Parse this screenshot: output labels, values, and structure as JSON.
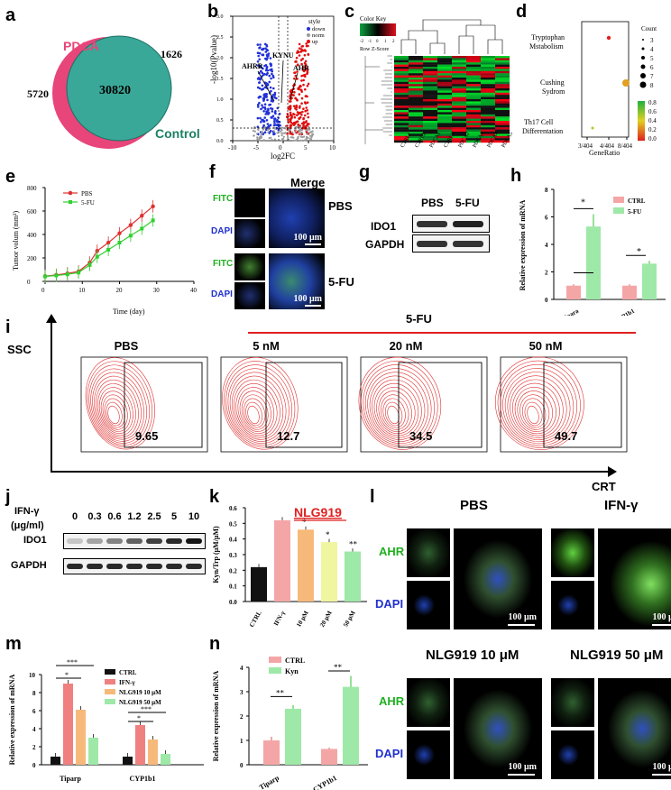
{
  "panel_labels": {
    "a": "a",
    "b": "b",
    "c": "c",
    "d": "d",
    "e": "e",
    "f": "f",
    "g": "g",
    "h": "h",
    "i": "i",
    "j": "j",
    "k": "k",
    "l": "l",
    "m": "m",
    "n": "n"
  },
  "panel_a": {
    "label_pdca": "PDCA",
    "label_control": "Control",
    "only_pdca": "5720",
    "overlap": "30820",
    "only_control": "1626",
    "color_pdca": "#e8457a",
    "color_control": "#3aa898"
  },
  "panel_b": {
    "ylabel": "-log10(Pvalue)",
    "xlabel": "log2FC",
    "legend_title": "style",
    "legend": [
      "down",
      "norm",
      "up"
    ],
    "genes": [
      "AHRR",
      "KYNU",
      "AHR"
    ],
    "xticks": [
      "-10",
      "-5",
      "0",
      "5",
      "10"
    ],
    "yticks": [
      "0.0",
      "0.5",
      "1.0",
      "1.5",
      "2.0",
      "2.5",
      "3.0"
    ]
  },
  "panel_c": {
    "key_title": "Color Key",
    "key_sub": "Row Z-Score",
    "key_ticks": [
      "-2",
      "-1",
      "0",
      "1",
      "2"
    ],
    "samples": [
      "CTRL1",
      "CTRL2",
      "PDCA1",
      "CTRL3",
      "PDCA2",
      "PDCA3",
      "PDCA4",
      "PDCA5"
    ]
  },
  "panel_d": {
    "terms": [
      "Tryptophan Mstabolism",
      "Cushing Sydrom",
      "Th17 Cell Differentation"
    ],
    "xticks": [
      "3/404",
      "4/404",
      "8/404"
    ],
    "xlabel": "GeneRatio",
    "count_title": "Count",
    "count_levels": [
      "3",
      "4",
      "5",
      "6",
      "7",
      "8"
    ],
    "color_ticks": [
      "0.8",
      "0.6",
      "0.4",
      "0.2",
      "0.0"
    ]
  },
  "panel_e": {
    "ylabel": "Tumor volum (mm³)",
    "xlabel": "Time (day)",
    "legend": [
      "PBS",
      "5-FU"
    ],
    "xticks": [
      "0",
      "10",
      "20",
      "30",
      "40"
    ],
    "yticks": [
      "0",
      "200",
      "400",
      "600",
      "800"
    ],
    "chart_data": {
      "type": "line",
      "x": [
        0,
        3,
        6,
        9,
        12,
        14,
        17,
        20,
        23,
        26,
        29
      ],
      "series": [
        {
          "name": "PBS",
          "values": [
            45,
            55,
            68,
            85,
            160,
            260,
            330,
            410,
            480,
            560,
            640
          ]
        },
        {
          "name": "5-FU",
          "values": [
            42,
            50,
            60,
            75,
            140,
            210,
            270,
            330,
            390,
            450,
            520
          ]
        }
      ],
      "xlabel": "Time (day)",
      "ylabel": "Tumor volum (mm³)",
      "xlim": [
        0,
        40
      ],
      "ylim": [
        0,
        800
      ]
    }
  },
  "panel_f": {
    "title": "Merge",
    "row_labels": [
      "FITC",
      "DAPI",
      "FITC",
      "DAPI"
    ],
    "groups": [
      "PBS",
      "5-FU"
    ],
    "scale": "100 μm"
  },
  "panel_g": {
    "cols": [
      "PBS",
      "5-FU"
    ],
    "rows": [
      "IDO1",
      "GAPDH"
    ]
  },
  "panel_h": {
    "ylabel": "Relative expression of mRNA",
    "legend": [
      "CTRL",
      "5-FU"
    ],
    "categories": [
      "Tipara",
      "CYP1b1"
    ],
    "yticks": [
      "0",
      "2",
      "4",
      "6",
      "8"
    ],
    "chart_data": {
      "type": "bar",
      "categories": [
        "Tipara",
        "CYP1b1"
      ],
      "series": [
        {
          "name": "CTRL",
          "values": [
            1.0,
            1.0
          ]
        },
        {
          "name": "5-FU",
          "values": [
            5.3,
            2.6
          ]
        }
      ],
      "ylabel": "Relative expression of mRNA",
      "ylim": [
        0,
        8
      ]
    }
  },
  "panel_i": {
    "yaxis": "SSC",
    "xaxis": "CRT",
    "treatment": "5-FU",
    "groups": [
      "PBS",
      "5 nM",
      "20 nM",
      "50 nM"
    ],
    "values": [
      "9.65",
      "12.7",
      "34.5",
      "49.7"
    ]
  },
  "panel_j": {
    "treatment_line1": "IFN-γ",
    "treatment_line2": "(μg/ml)",
    "doses": [
      "0",
      "0.3",
      "0.6",
      "1.2",
      "2.5",
      "5",
      "10"
    ],
    "rows": [
      "IDO1",
      "GAPDH"
    ],
    "ido1_levels": [
      0.2,
      0.35,
      0.5,
      0.65,
      0.8,
      0.9,
      1.0
    ]
  },
  "panel_k": {
    "ylabel": "Kyn/Trp (μM/μM)",
    "drug": "NLG919",
    "categories": [
      "CTRL",
      "IFN-γ",
      "10 μM",
      "20 μM",
      "50 μM"
    ],
    "stars": [
      "*",
      "*",
      "**"
    ],
    "yticks": [
      "0.0",
      "0.1",
      "0.2",
      "0.3",
      "0.4",
      "0.5",
      "0.6"
    ],
    "chart_data": {
      "type": "bar",
      "categories": [
        "CTRL",
        "IFN-γ",
        "10 μM",
        "20 μM",
        "50 μM"
      ],
      "values": [
        0.22,
        0.52,
        0.46,
        0.38,
        0.32
      ],
      "ylabel": "Kyn/Trp (μM/μM)",
      "ylim": [
        0,
        0.6
      ],
      "colors": [
        "#111111",
        "#f4a6a6",
        "#f7b97a",
        "#f0f5a0",
        "#9ee8a8"
      ]
    }
  },
  "panel_l": {
    "groups": [
      "PBS",
      "IFN-γ",
      "NLG919 10 μM",
      "NLG919 50 μM"
    ],
    "stains": [
      "AHR",
      "DAPI"
    ],
    "scale": "100 μm"
  },
  "panel_m": {
    "ylabel": "Relative expression of mRNA",
    "legend": [
      "CTRL",
      "IFN-γ",
      "NLG919 10 μM",
      "NLG919 50 μM"
    ],
    "categories": [
      "Tiparp",
      "CYP1b1"
    ],
    "yticks": [
      "0",
      "2",
      "4",
      "6",
      "8",
      "10"
    ],
    "stars": [
      "*",
      "***",
      "*",
      "***"
    ],
    "chart_data": {
      "type": "bar",
      "categories": [
        "Tiparp",
        "CYP1b1"
      ],
      "series": [
        {
          "name": "CTRL",
          "values": [
            0.9,
            0.9
          ]
        },
        {
          "name": "IFN-γ",
          "values": [
            9.0,
            4.4
          ]
        },
        {
          "name": "NLG919 10 μM",
          "values": [
            6.1,
            2.8
          ]
        },
        {
          "name": "NLG919 50 μM",
          "values": [
            3.0,
            1.2
          ]
        }
      ],
      "ylabel": "Relative expression of mRNA",
      "ylim": [
        0,
        10
      ],
      "colors": [
        "#111111",
        "#f08080",
        "#f7b97a",
        "#9ee8a8"
      ]
    }
  },
  "panel_n": {
    "ylabel": "Relative expression of mRNA",
    "legend": [
      "CTRL",
      "Kyn"
    ],
    "categories": [
      "Tiparp",
      "CYP1b1"
    ],
    "yticks": [
      "0",
      "1",
      "2",
      "3",
      "4"
    ],
    "stars": [
      "**",
      "**"
    ],
    "chart_data": {
      "type": "bar",
      "categories": [
        "Tiparp",
        "CYP1b1"
      ],
      "series": [
        {
          "name": "CTRL",
          "values": [
            1.0,
            0.65
          ]
        },
        {
          "name": "Kyn",
          "values": [
            2.3,
            3.2
          ]
        }
      ],
      "ylabel": "Relative expression of mRNA",
      "ylim": [
        0,
        4
      ],
      "colors": [
        "#f4a6a6",
        "#9ee8a8"
      ]
    }
  }
}
